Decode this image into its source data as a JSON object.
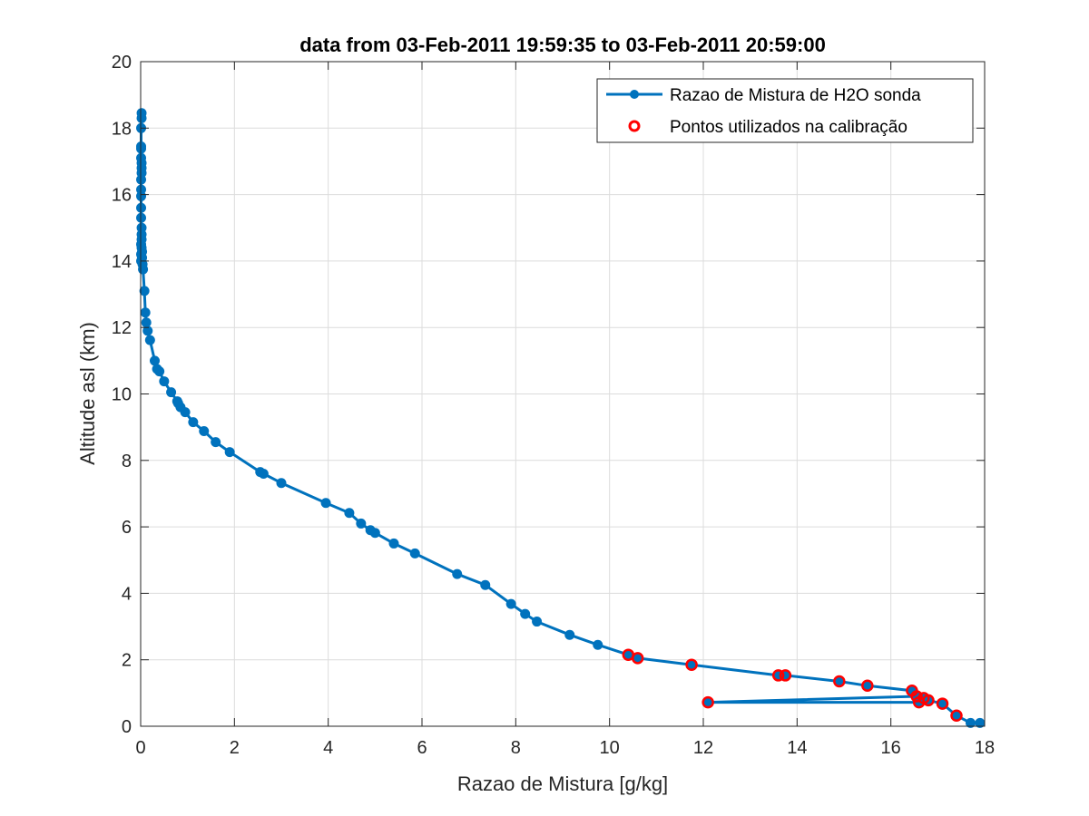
{
  "chart_data": {
    "type": "line",
    "title": "data from 03-Feb-2011 19:59:35 to 03-Feb-2011 20:59:00",
    "xlabel": "Razao de Mistura [g/kg]",
    "ylabel": "Altitude asl (km)",
    "xlim": [
      0,
      18
    ],
    "ylim": [
      0,
      20
    ],
    "xticks": [
      0,
      2,
      4,
      6,
      8,
      10,
      12,
      14,
      16,
      18
    ],
    "yticks": [
      0,
      2,
      4,
      6,
      8,
      10,
      12,
      14,
      16,
      18,
      20
    ],
    "grid": true,
    "legend_position": "top-right",
    "colors": {
      "series": "#0072BD",
      "calibration": "#FF0000",
      "axis": "#262626",
      "grid": "#DCDCDC"
    },
    "series": [
      {
        "name": "Razao de Mistura de H2O sonda",
        "style": "line-with-dots",
        "x": [
          17.9,
          17.7,
          17.4,
          17.1,
          16.8,
          16.6,
          12.1,
          16.55,
          16.7,
          16.45,
          15.5,
          14.9,
          13.75,
          13.6,
          11.75,
          10.6,
          10.4,
          9.75,
          9.15,
          8.45,
          8.2,
          7.9,
          7.35,
          6.75,
          5.85,
          5.4,
          5.0,
          4.9,
          4.7,
          4.45,
          3.95,
          3.0,
          2.62,
          2.55,
          1.9,
          1.6,
          1.35,
          1.12,
          0.95,
          0.85,
          0.8,
          0.78,
          0.65,
          0.5,
          0.4,
          0.35,
          0.3,
          0.2,
          0.15,
          0.12,
          0.1,
          0.08,
          0.05,
          0.04,
          0.03,
          0.03,
          0.02,
          0.02,
          0.02,
          0.01,
          0.01,
          0.01,
          0.01,
          0.01,
          0.02,
          0.02,
          0.02,
          0.01,
          0.01,
          0.01,
          0.01,
          0.02,
          0.02,
          0.01,
          0.01,
          0.01,
          0.02
        ],
        "y": [
          0.1,
          0.1,
          0.32,
          0.68,
          0.78,
          0.72,
          0.72,
          0.9,
          0.85,
          1.07,
          1.22,
          1.35,
          1.53,
          1.53,
          1.85,
          2.05,
          2.15,
          2.45,
          2.75,
          3.15,
          3.38,
          3.68,
          4.25,
          4.58,
          5.2,
          5.5,
          5.82,
          5.9,
          6.1,
          6.42,
          6.72,
          7.32,
          7.6,
          7.65,
          8.25,
          8.55,
          8.88,
          9.15,
          9.45,
          9.6,
          9.72,
          9.78,
          10.05,
          10.38,
          10.68,
          10.75,
          11.0,
          11.62,
          11.9,
          12.15,
          12.45,
          13.1,
          13.75,
          13.9,
          14.1,
          14.28,
          14.4,
          14.65,
          15.0,
          15.3,
          15.6,
          15.95,
          16.15,
          16.45,
          16.65,
          16.8,
          16.95,
          17.1,
          17.38,
          17.45,
          18.0,
          18.3,
          18.45,
          14.0,
          14.2,
          14.5,
          14.8
        ]
      },
      {
        "name": "Pontos utilizados na calibração",
        "style": "circle-markers",
        "x": [
          17.4,
          17.1,
          16.8,
          16.7,
          16.6,
          16.55,
          16.45,
          15.5,
          14.9,
          13.75,
          13.6,
          12.1,
          11.75,
          10.6,
          10.4
        ],
        "y": [
          0.32,
          0.68,
          0.78,
          0.85,
          0.72,
          0.9,
          1.07,
          1.22,
          1.35,
          1.53,
          1.53,
          0.72,
          1.85,
          2.05,
          2.15
        ]
      }
    ]
  }
}
